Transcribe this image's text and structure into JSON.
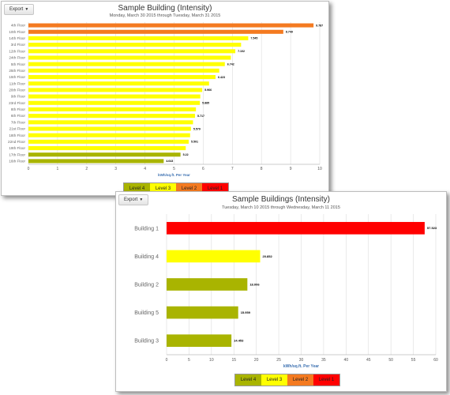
{
  "export_label": "Export",
  "level_colors": {
    "Level 4": "#a9b400",
    "Level 3": "#ffff00",
    "Level 2": "#f47a20",
    "Level 1": "#ff0000"
  },
  "charts": [
    {
      "title": "Sample Building (Intensity)",
      "subtitle": "Monday, March 30 2015 through Tuesday, March 31 2015",
      "legend": [
        "Level 4",
        "Level 3",
        "Level 2",
        "Level 1"
      ]
    },
    {
      "title": "Sample Buildings (Intensity)",
      "subtitle": "Tuesday, March 10 2015 through Wednesday, March 11 2015",
      "legend": [
        "Level 4",
        "Level 3",
        "Level 2",
        "Level 1"
      ]
    }
  ],
  "chart_data": [
    {
      "type": "bar",
      "orientation": "horizontal",
      "title": "Sample Building (Intensity)",
      "subtitle": "Monday, March 30 2015 through Tuesday, March 31 2015",
      "xlabel": "kWh/sq.ft. Per Year",
      "ylabel": "",
      "xlim": [
        0,
        10
      ],
      "xticks": [
        0,
        1,
        2,
        3,
        4,
        5,
        6,
        7,
        8,
        9,
        10
      ],
      "grid": true,
      "categories": [
        "4th Floor",
        "10th Floor",
        "14th Floor",
        "3rd Floor",
        "12th Floor",
        "24th Floor",
        "5th Floor",
        "25th Floor",
        "15th Floor",
        "11th Floor",
        "20th Floor",
        "9th Floor",
        "23rd Floor",
        "8th Floor",
        "6th Floor",
        "7th Floor",
        "21st Floor",
        "18th Floor",
        "22nd Floor",
        "19th Floor",
        "17th Floor",
        "16th Floor"
      ],
      "values": [
        9.787,
        8.749,
        7.545,
        7.3,
        7.102,
        6.95,
        6.742,
        6.55,
        6.423,
        6.2,
        5.966,
        5.9,
        5.885,
        5.75,
        5.717,
        5.65,
        5.579,
        5.55,
        5.501,
        5.4,
        5.22,
        4.643
      ],
      "data_labels": [
        "9.787",
        "8.749",
        "7.545",
        "",
        "7.102",
        "",
        "6.742",
        "",
        "6.423",
        "",
        "5.966",
        "",
        "5.885",
        "",
        "5.717",
        "",
        "5.579",
        "",
        "5.501",
        "",
        "5.22",
        "4.643"
      ],
      "levels": [
        "Level 2",
        "Level 2",
        "Level 3",
        "Level 3",
        "Level 3",
        "Level 3",
        "Level 3",
        "Level 3",
        "Level 3",
        "Level 3",
        "Level 3",
        "Level 3",
        "Level 3",
        "Level 3",
        "Level 3",
        "Level 3",
        "Level 3",
        "Level 3",
        "Level 3",
        "Level 3",
        "Level 4",
        "Level 4"
      ],
      "legend": [
        "Level 4",
        "Level 3",
        "Level 2",
        "Level 1"
      ],
      "legend_position": "bottom"
    },
    {
      "type": "bar",
      "orientation": "horizontal",
      "title": "Sample Buildings (Intensity)",
      "subtitle": "Tuesday, March 10 2015 through Wednesday, March 11 2015",
      "xlabel": "kWh/sq.ft. Per Year",
      "ylabel": "",
      "xlim": [
        0,
        60
      ],
      "xticks": [
        0,
        5,
        10,
        15,
        20,
        25,
        30,
        35,
        40,
        45,
        50,
        55,
        60
      ],
      "grid": true,
      "categories": [
        "Building 1",
        "Building 4",
        "Building 2",
        "Building 5",
        "Building 3"
      ],
      "values": [
        57.523,
        20.852,
        18.006,
        15.959,
        14.453
      ],
      "data_labels": [
        "57.523",
        "20.852",
        "18.006",
        "15.959",
        "14.453"
      ],
      "levels": [
        "Level 1",
        "Level 3",
        "Level 4",
        "Level 4",
        "Level 4"
      ],
      "legend": [
        "Level 4",
        "Level 3",
        "Level 2",
        "Level 1"
      ],
      "legend_position": "bottom"
    }
  ]
}
